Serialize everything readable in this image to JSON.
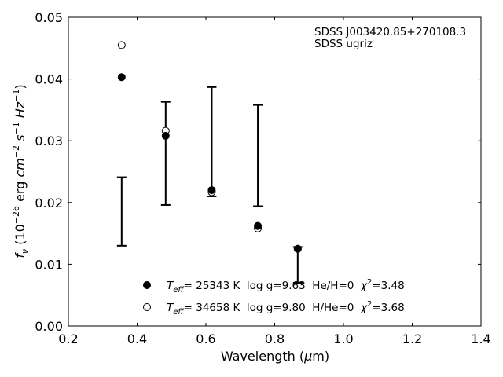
{
  "chart_data": {
    "type": "scatter",
    "annotation": [
      "SDSS J003420.85+270108.3",
      "SDSS ugriz"
    ],
    "xlabel": {
      "pre": "Wavelength (",
      "greek": "μ",
      "post": "m)"
    },
    "ylabel": {
      "prefix": "f",
      "sub": "ν",
      "open": "(10",
      "exp": "−26",
      "erg": " erg ",
      "cm": "cm",
      "cmexp": "−2",
      "s": "s",
      "sexp": "−1",
      "hz": "Hz",
      "hzexp": "−1",
      "close": ")"
    },
    "xlim": [
      0.2,
      1.4
    ],
    "ylim": [
      0.0,
      0.05
    ],
    "xticks": [
      0.2,
      0.4,
      0.6,
      0.8,
      1.0,
      1.2,
      1.4
    ],
    "xtick_labels": [
      "0.2",
      "0.4",
      "0.6",
      "0.8",
      "1.0",
      "1.2",
      "1.4"
    ],
    "yticks": [
      0.0,
      0.01,
      0.02,
      0.03,
      0.04,
      0.05
    ],
    "ytick_labels": [
      "0.00",
      "0.01",
      "0.02",
      "0.03",
      "0.04",
      "0.05"
    ],
    "observed": {
      "x": [
        0.355,
        0.483,
        0.617,
        0.751,
        0.867
      ],
      "y_low": [
        0.013,
        0.0196,
        0.021,
        0.0194,
        0.007
      ],
      "y_high": [
        0.0241,
        0.0363,
        0.0387,
        0.0358,
        0.0128
      ]
    },
    "series": [
      {
        "marker": "filled-circle",
        "x": [
          0.355,
          0.483,
          0.617,
          0.751,
          0.867
        ],
        "y": [
          0.0403,
          0.0308,
          0.022,
          0.0162,
          0.0125
        ],
        "legend": {
          "teff_label": "T",
          "teff_sub": "eff",
          "text": "= 25343 K  log g=9.63  He/H=0  ",
          "chi": "χ",
          "chi_exp": "2",
          "chi_val": "=3.48"
        }
      },
      {
        "marker": "open-circle",
        "x": [
          0.355,
          0.483,
          0.617,
          0.751,
          0.867
        ],
        "y": [
          0.0455,
          0.0316,
          0.0217,
          0.0158,
          0.0125
        ],
        "legend": {
          "teff_label": "T",
          "teff_sub": "eff",
          "text": "= 34658 K  log g=9.80  H/He=0  ",
          "chi": "χ",
          "chi_exp": "2",
          "chi_val": "=3.68"
        }
      }
    ],
    "legend_position": "bottom-center",
    "grid": false
  }
}
